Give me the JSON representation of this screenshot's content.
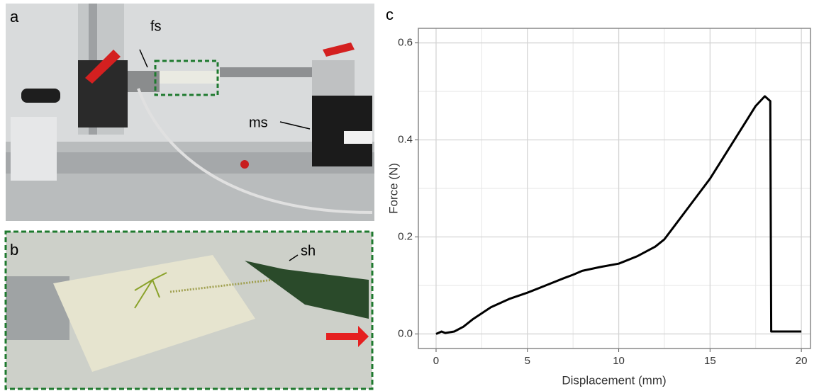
{
  "panels": [
    {
      "label": "a",
      "annotations": [
        "fs",
        "ms"
      ]
    },
    {
      "label": "b",
      "annotations": [
        "sh"
      ]
    }
  ],
  "chart_data": {
    "type": "line",
    "panel_label": "c",
    "x_label": "Displacement (mm)",
    "y_label": "Force (N)",
    "x": [
      0,
      0.3,
      0.5,
      1,
      1.5,
      2,
      3,
      4,
      5,
      6,
      7,
      7.5,
      8,
      9,
      10,
      11,
      12,
      12.5,
      13,
      14,
      15,
      16,
      17,
      17.5,
      18,
      18.3,
      18.35,
      19,
      20
    ],
    "values": [
      0.0,
      0.005,
      0.002,
      0.005,
      0.015,
      0.03,
      0.055,
      0.072,
      0.085,
      0.1,
      0.115,
      0.122,
      0.13,
      0.138,
      0.145,
      0.16,
      0.18,
      0.195,
      0.22,
      0.27,
      0.32,
      0.38,
      0.44,
      0.47,
      0.49,
      0.48,
      0.005,
      0.005,
      0.005
    ],
    "color": "#000000",
    "xlim": [
      -0.97,
      20.5
    ],
    "ylim": [
      -0.03,
      0.63
    ],
    "xticks": [
      0,
      5,
      10,
      15,
      20
    ],
    "yticks": [
      {
        "value": 0,
        "label": "0.0"
      },
      0.2,
      0.4,
      0.6
    ],
    "grid": true
  }
}
